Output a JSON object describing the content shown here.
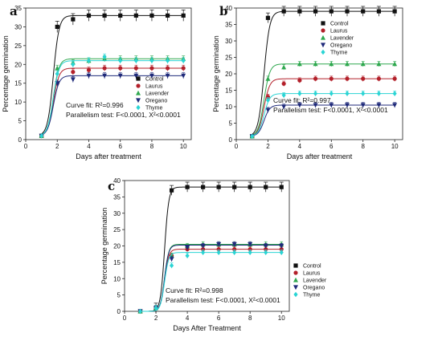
{
  "panels": [
    {
      "letter": "a",
      "xlabel": "Days after treatment",
      "ylabel": "Percentage germination",
      "curve_fit": "Curve fit: R²=0.996",
      "parallelism": "Parallelism test: F<0.0001, X²<0.0001"
    },
    {
      "letter": "b",
      "xlabel": "Days after treatment",
      "ylabel": "Percentage germination",
      "curve_fit": "Curve fit: R²=0.997",
      "parallelism": "Parallelism test: F<0.0001, X²<0.0001"
    },
    {
      "letter": "c",
      "xlabel": "Days After Treatment",
      "ylabel": "Percentage germination",
      "curve_fit": "Curve fit: R²=0.998",
      "parallelism": "Parallelism test: F<0.0001, X²<0.0001"
    }
  ],
  "colors": {
    "Control": "#111111",
    "Laurus": "#b3202a",
    "Lavender": "#2fa84f",
    "Oregano": "#1f2a7a",
    "Thyme": "#2ad4d4"
  },
  "markers": {
    "Control": "square",
    "Laurus": "circle",
    "Lavender": "triangle-up",
    "Oregano": "triangle-down",
    "Thyme": "diamond"
  },
  "chart_data": [
    {
      "type": "scatter",
      "panel": "a",
      "xlabel": "Days after treatment",
      "ylabel": "Percentage germination",
      "xlim": [
        0,
        10.5
      ],
      "ylim": [
        0,
        35
      ],
      "xticks": [
        0,
        2,
        4,
        6,
        8,
        10
      ],
      "yticks": [
        0,
        5,
        10,
        15,
        20,
        25,
        30,
        35
      ],
      "legend_position": "center-right",
      "x": [
        1,
        2,
        3,
        4,
        5,
        6,
        7,
        8,
        9,
        10
      ],
      "series": [
        {
          "name": "Control",
          "values": [
            1,
            30,
            32,
            33,
            33,
            33,
            33,
            33,
            33,
            33
          ]
        },
        {
          "name": "Laurus",
          "values": [
            1,
            15,
            18,
            18.5,
            19,
            19,
            19,
            19,
            19,
            19
          ]
        },
        {
          "name": "Lavender",
          "values": [
            1,
            19,
            20.5,
            21,
            21.5,
            21.5,
            21.5,
            21.5,
            21.5,
            21.5
          ]
        },
        {
          "name": "Oregano",
          "values": [
            1,
            15,
            16,
            17,
            17,
            17,
            17,
            17,
            17,
            17
          ]
        },
        {
          "name": "Thyme",
          "values": [
            1,
            17.5,
            20,
            21,
            22,
            21,
            21,
            21,
            21,
            21
          ]
        }
      ]
    },
    {
      "type": "scatter",
      "panel": "b",
      "xlabel": "Days after treatment",
      "ylabel": "Percentage germination",
      "xlim": [
        0,
        10.5
      ],
      "ylim": [
        0,
        40
      ],
      "xticks": [
        0,
        2,
        4,
        6,
        8,
        10
      ],
      "yticks": [
        0,
        5,
        10,
        15,
        20,
        25,
        30,
        35,
        40
      ],
      "legend_position": "top-right",
      "x": [
        1,
        2,
        3,
        4,
        5,
        6,
        7,
        8,
        9,
        10
      ],
      "series": [
        {
          "name": "Control",
          "values": [
            1,
            37,
            39,
            39,
            39,
            39,
            39,
            39,
            39,
            39
          ]
        },
        {
          "name": "Laurus",
          "values": [
            1,
            13,
            17,
            18,
            18.5,
            18.5,
            18.5,
            18.5,
            18.5,
            18.5
          ]
        },
        {
          "name": "Lavender",
          "values": [
            1,
            18.5,
            22,
            23,
            23,
            23,
            23,
            23,
            23,
            23
          ]
        },
        {
          "name": "Oregano",
          "values": [
            1,
            9,
            10,
            10.5,
            10.5,
            10.5,
            10.5,
            10.5,
            10.5,
            10.5
          ]
        },
        {
          "name": "Thyme",
          "values": [
            1,
            12,
            13.5,
            14,
            14,
            14,
            14,
            14,
            14,
            14
          ]
        }
      ]
    },
    {
      "type": "scatter",
      "panel": "c",
      "xlabel": "Days After Treatment",
      "ylabel": "Percentage germination",
      "xlim": [
        0,
        10.5
      ],
      "ylim": [
        0,
        40
      ],
      "xticks": [
        0,
        2,
        4,
        6,
        8,
        10
      ],
      "yticks": [
        0,
        5,
        10,
        15,
        20,
        25,
        30,
        35,
        40
      ],
      "legend_position": "right",
      "x": [
        1,
        2,
        3,
        4,
        5,
        6,
        7,
        8,
        9,
        10
      ],
      "series": [
        {
          "name": "Control",
          "values": [
            0,
            1,
            37,
            38,
            38,
            38,
            38,
            38,
            38,
            38
          ]
        },
        {
          "name": "Laurus",
          "values": [
            0,
            1,
            17,
            19,
            19,
            19,
            19,
            19,
            19,
            19
          ]
        },
        {
          "name": "Lavender",
          "values": [
            0,
            1,
            17,
            20,
            20.5,
            20.5,
            20.5,
            20.5,
            20.5,
            20.5
          ]
        },
        {
          "name": "Oregano",
          "values": [
            0,
            1,
            16,
            19.5,
            20,
            20.5,
            20.5,
            20.5,
            20,
            20
          ]
        },
        {
          "name": "Thyme",
          "values": [
            0,
            1,
            14,
            17,
            18,
            18,
            18,
            18,
            18,
            18
          ]
        }
      ]
    }
  ]
}
